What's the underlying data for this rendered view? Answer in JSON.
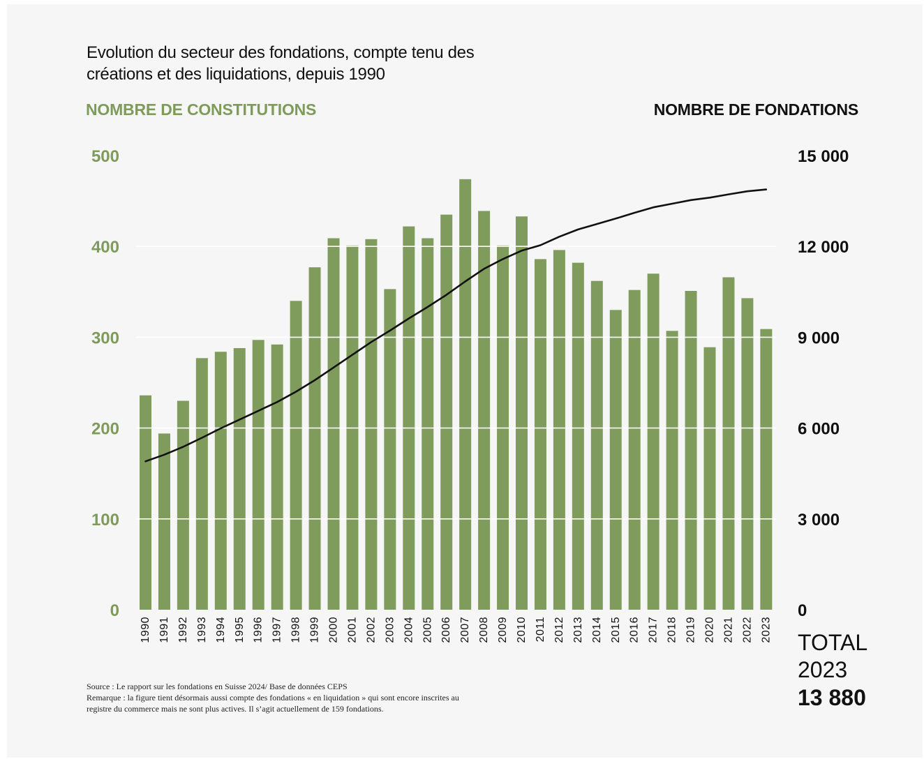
{
  "title_line1": "Evolution du secteur des fondations, compte tenu des",
  "title_line2": "créations et des liquidations, depuis 1990",
  "total": {
    "label": "TOTAL",
    "year": "2023",
    "value": "13 880"
  },
  "notes": {
    "source": "Source : Le rapport sur les fondations en Suisse 2024/ Base de données CEPS",
    "remark_line1": "Remarque : la figure tient désormais aussi compte des fondations « en liquidation » qui sont encore inscrites au",
    "remark_line2": "registre du commerce mais ne sont plus actives. Il s’agit actuellement de 159 fondations."
  },
  "colors": {
    "bars": "#809c5c",
    "line": "#111111",
    "left_axis": "#7e9b5a",
    "background": "#f6f6f6"
  },
  "chart_data": {
    "type": "bar",
    "title": "Evolution du secteur des fondations, compte tenu des créations et des liquidations, depuis 1990",
    "ylabel": "NOMBRE DE CONSTITUTIONS",
    "y2label": "NOMBRE DE FONDATIONS",
    "ylim": [
      0,
      500
    ],
    "y2lim": [
      0,
      15000
    ],
    "yticks": [
      "0",
      "100",
      "200",
      "300",
      "400",
      "500"
    ],
    "y2ticks": [
      "0",
      "3 000",
      "6 000",
      "9 000",
      "12 000",
      "15 000"
    ],
    "grid": "horizontal, white",
    "categories": [
      "1990",
      "1991",
      "1992",
      "1993",
      "1994",
      "1995",
      "1996",
      "1997",
      "1998",
      "1999",
      "2000",
      "2001",
      "2002",
      "2003",
      "2004",
      "2005",
      "2006",
      "2007",
      "2008",
      "2009",
      "2010",
      "2011",
      "2012",
      "2013",
      "2014",
      "2015",
      "2016",
      "2017",
      "2018",
      "2019",
      "2020",
      "2021",
      "2022",
      "2023"
    ],
    "series": [
      {
        "type": "bar",
        "axis": "left",
        "values": [
          236,
          194,
          230,
          277,
          284,
          288,
          297,
          292,
          340,
          377,
          409,
          401,
          408,
          353,
          422,
          409,
          435,
          474,
          439,
          401,
          433,
          386,
          396,
          382,
          362,
          330,
          352,
          370,
          307,
          351,
          289,
          366,
          343,
          309
        ]
      },
      {
        "type": "line",
        "axis": "right",
        "values": [
          4900,
          5120,
          5380,
          5680,
          5990,
          6280,
          6570,
          6860,
          7200,
          7580,
          8000,
          8420,
          8840,
          9220,
          9620,
          10000,
          10400,
          10840,
          11260,
          11580,
          11860,
          12040,
          12320,
          12560,
          12740,
          12920,
          13110,
          13290,
          13410,
          13530,
          13610,
          13720,
          13820,
          13880
        ]
      }
    ]
  }
}
